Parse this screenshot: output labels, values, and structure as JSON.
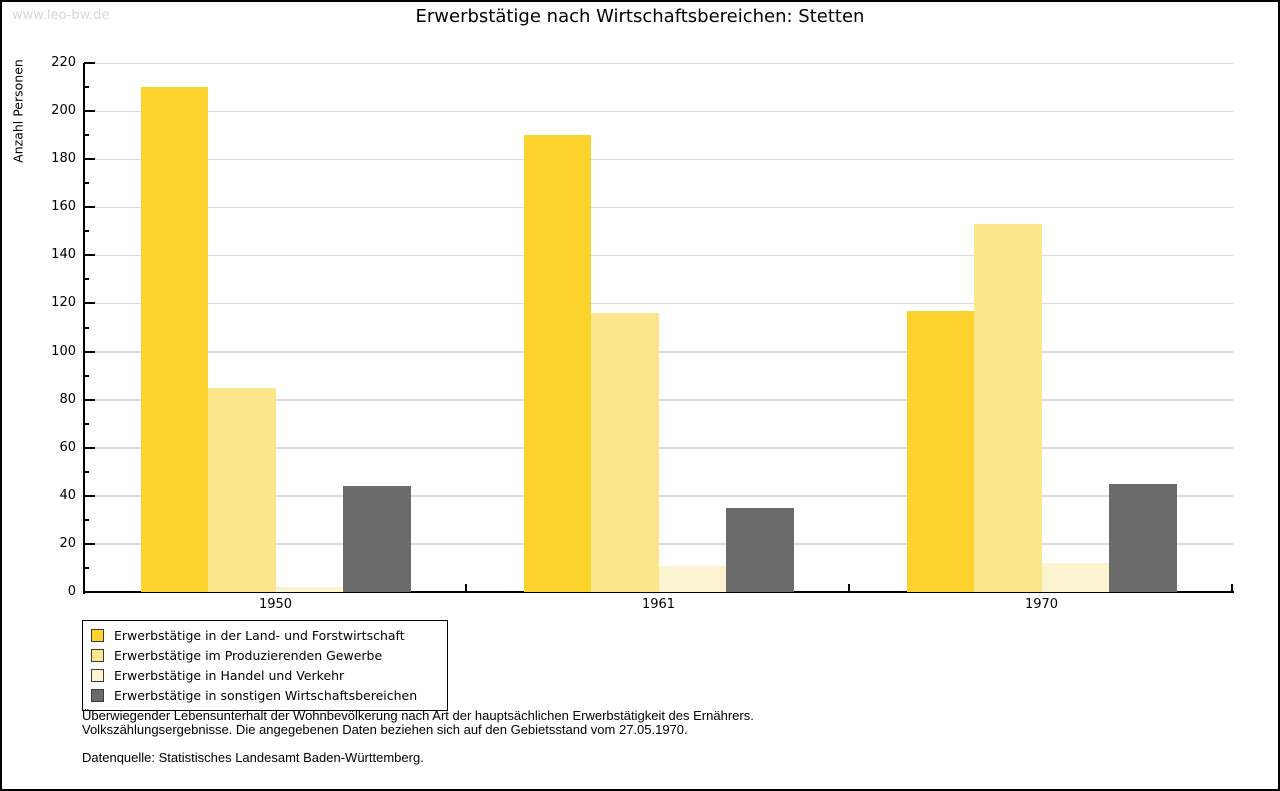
{
  "watermark": "www.leo-bw.de",
  "title": "Erwerbstätige nach Wirtschaftsbereichen: Stetten",
  "chart_data": {
    "type": "bar",
    "title": "Erwerbstätige nach Wirtschaftsbereichen: Stetten",
    "xlabel": "",
    "ylabel": "Anzahl Personen",
    "categories": [
      "1950",
      "1961",
      "1970"
    ],
    "series": [
      {
        "name": "Erwerbstätige in der Land- und Forstwirtschaft",
        "color": "#FCD32D",
        "values": [
          210,
          190,
          117
        ]
      },
      {
        "name": "Erwerbstätige im Produzierenden Gewerbe",
        "color": "#FBE68C",
        "values": [
          85,
          116,
          153
        ]
      },
      {
        "name": "Erwerbstätige in Handel und Verkehr",
        "color": "#FCF4D1",
        "values": [
          2,
          11,
          12
        ]
      },
      {
        "name": "Erwerbstätige in sonstigen Wirtschaftsbereichen",
        "color": "#6B6B6B",
        "values": [
          44,
          35,
          45
        ]
      }
    ],
    "ylim": [
      0,
      220
    ],
    "y_major_step": 20,
    "y_minor_step": 10,
    "grid": true,
    "gridline_color": "#DBDBDB",
    "legend_position": "bottom-left"
  },
  "footer": {
    "line1": "Überwiegender Lebensunterhalt der Wohnbevölkerung nach Art der hauptsächlichen Erwerbstätigkeit des Ernährers.",
    "line2": "Volkszählungsergebnisse. Die angegebenen Daten beziehen sich auf den Gebietsstand vom 27.05.1970.",
    "source": "Datenquelle: Statistisches Landesamt Baden-Württemberg."
  }
}
